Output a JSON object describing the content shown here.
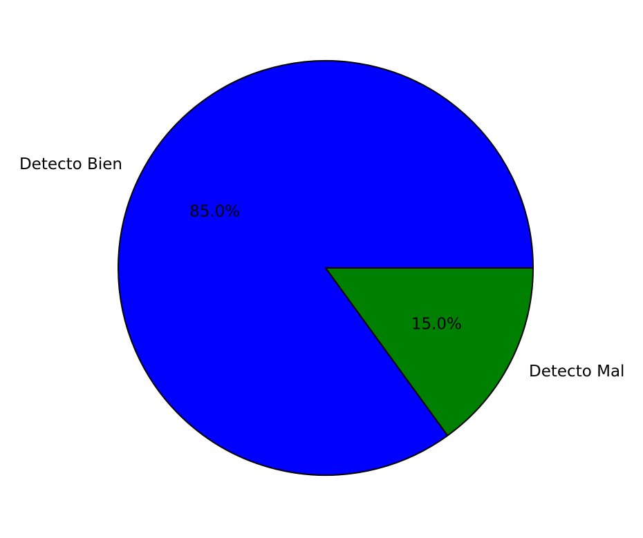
{
  "chart_data": {
    "type": "pie",
    "title": "",
    "start_angle_deg": 0,
    "direction": "counterclockwise",
    "slices": [
      {
        "label": "Detecto Bien",
        "value": 85.0,
        "pct_label": "85.0%",
        "color": "#0000ff"
      },
      {
        "label": "Detecto Mal",
        "value": 15.0,
        "pct_label": "15.0%",
        "color": "#008000"
      }
    ]
  }
}
